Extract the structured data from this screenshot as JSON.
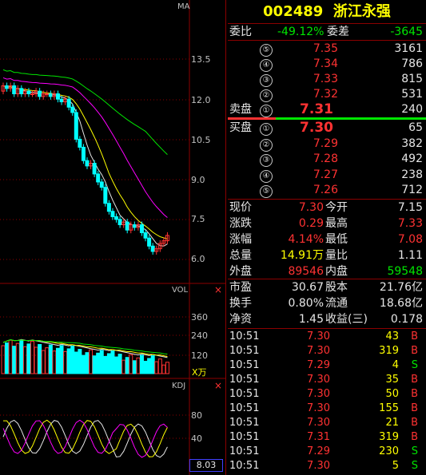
{
  "stock": {
    "code": "002489",
    "name": "浙江永强"
  },
  "chart": {
    "main_label": "MA",
    "price_ticks": [
      "13.5",
      "12.0",
      "10.5",
      "9.0",
      "7.5",
      "6.0"
    ],
    "vol_label": "VOL",
    "vol_ticks": [
      "360",
      "240",
      "120"
    ],
    "vol_unit": "X万",
    "kdj_label": "KDJ",
    "kdj_ticks": [
      "80",
      "40"
    ],
    "kdj_value": "8.03",
    "close_icon": "close-icon"
  },
  "committee": {
    "ratio_label": "委比",
    "ratio": "-49.12%",
    "diff_label": "委差",
    "diff": "-3645"
  },
  "sell": [
    {
      "num": "⑤",
      "price": "7.35",
      "vol": "3161"
    },
    {
      "num": "④",
      "price": "7.34",
      "vol": "786"
    },
    {
      "num": "③",
      "price": "7.33",
      "vol": "815"
    },
    {
      "num": "②",
      "price": "7.32",
      "vol": "531"
    },
    {
      "num": "①",
      "price": "7.31",
      "vol": "240",
      "label": "卖盘"
    }
  ],
  "buy": [
    {
      "num": "①",
      "price": "7.30",
      "vol": "65",
      "label": "买盘"
    },
    {
      "num": "②",
      "price": "7.29",
      "vol": "382"
    },
    {
      "num": "③",
      "price": "7.28",
      "vol": "492"
    },
    {
      "num": "④",
      "price": "7.27",
      "vol": "238"
    },
    {
      "num": "⑤",
      "price": "7.26",
      "vol": "712"
    }
  ],
  "quote": [
    {
      "l1": "现价",
      "v1": "7.30",
      "l2": "今开",
      "v2": "7.15"
    },
    {
      "l1": "涨跌",
      "v1": "0.29",
      "l2": "最高",
      "v2": "7.33"
    },
    {
      "l1": "涨幅",
      "v1": "4.14%",
      "l2": "最低",
      "v2": "7.08"
    },
    {
      "l1": "总量",
      "v1": "14.91万",
      "l2": "量比",
      "v2": "1.11"
    },
    {
      "l1": "外盘",
      "v1": "89546",
      "l2": "内盘",
      "v2": "59548"
    }
  ],
  "fund": [
    {
      "l1": "市盈",
      "v1": "30.67",
      "l2": "股本",
      "v2": "21.76亿"
    },
    {
      "l1": "换手",
      "v1": "0.80%",
      "l2": "流通",
      "v2": "18.68亿"
    },
    {
      "l1": "净资",
      "v1": "1.45",
      "l2": "收益(三)",
      "v2": "0.178"
    }
  ],
  "ticks": [
    {
      "t": "10:51",
      "p": "7.30",
      "v": "43",
      "s": "B"
    },
    {
      "t": "10:51",
      "p": "7.30",
      "v": "319",
      "s": "B"
    },
    {
      "t": "10:51",
      "p": "7.29",
      "v": "4",
      "s": "S"
    },
    {
      "t": "10:51",
      "p": "7.30",
      "v": "35",
      "s": "B"
    },
    {
      "t": "10:51",
      "p": "7.30",
      "v": "50",
      "s": "B"
    },
    {
      "t": "10:51",
      "p": "7.30",
      "v": "155",
      "s": "B"
    },
    {
      "t": "10:51",
      "p": "7.30",
      "v": "21",
      "s": "B"
    },
    {
      "t": "10:51",
      "p": "7.31",
      "v": "319",
      "s": "B"
    },
    {
      "t": "10:51",
      "p": "7.29",
      "v": "230",
      "s": "S"
    },
    {
      "t": "10:51",
      "p": "7.30",
      "v": "5",
      "s": "S"
    }
  ],
  "colors": {
    "up": "#ff3232",
    "down": "#00e600",
    "yellow": "#ffff00",
    "cyan": "#00ffff",
    "grid": "#8b0000"
  }
}
